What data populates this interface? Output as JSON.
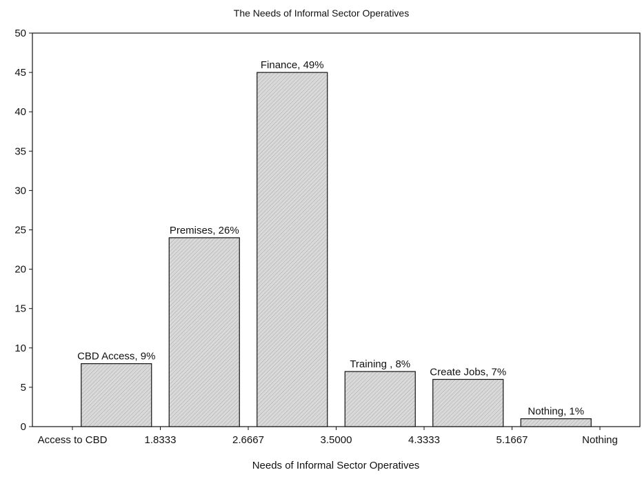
{
  "chart_data": {
    "type": "bar",
    "title": "The Needs of Informal Sector Operatives",
    "xlabel": "Needs of Informal Sector Operatives",
    "ylabel": "",
    "ylim": [
      0,
      50
    ],
    "yticks": [
      0,
      5,
      10,
      15,
      20,
      25,
      30,
      35,
      40,
      45,
      50
    ],
    "xlim": [
      1,
      6
    ],
    "xticks": [
      {
        "value": 1,
        "label": "Access to CBD"
      },
      {
        "value": 1.8333,
        "label": "1.8333"
      },
      {
        "value": 2.6667,
        "label": "2.6667"
      },
      {
        "value": 3.5,
        "label": "3.5000"
      },
      {
        "value": 4.3333,
        "label": "4.3333"
      },
      {
        "value": 5.1667,
        "label": "5.1667"
      },
      {
        "value": 6,
        "label": "Nothing"
      }
    ],
    "grid": false,
    "colors": {
      "bar_fill": "#d9d9d9",
      "bar_stroke": "#111111",
      "axis": "#111111"
    },
    "bars": [
      {
        "label": "CBD Access, 9%",
        "value": 8
      },
      {
        "label": "Premises, 26%",
        "value": 24
      },
      {
        "label": "Finance, 49%",
        "value": 45
      },
      {
        "label": "Training , 8%",
        "value": 7
      },
      {
        "label": "Create Jobs, 7%",
        "value": 6
      },
      {
        "label": "Nothing, 1%",
        "value": 1
      }
    ]
  }
}
